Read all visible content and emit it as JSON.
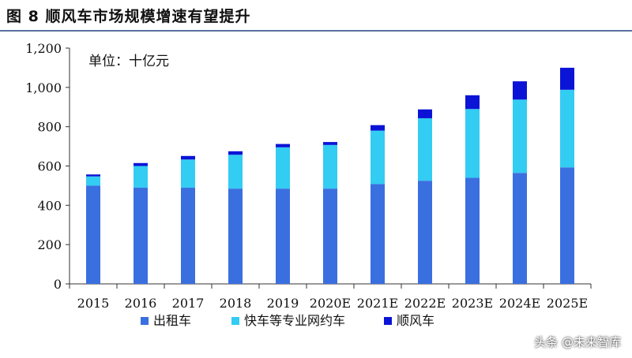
{
  "title": "图 8 顺风车市场规模增速有望提升",
  "watermark": "头条 @未来智库",
  "colors": {
    "taxi": "#3a6fe0",
    "express": "#33ccf2",
    "carpool": "#0b14d6",
    "title_rule": "#5a6fa0"
  },
  "chart_data": {
    "type": "bar",
    "stacked": true,
    "unit_label": "单位：十亿元",
    "categories": [
      "2015",
      "2016",
      "2017",
      "2018",
      "2019",
      "2020E",
      "2021E",
      "2022E",
      "2023E",
      "2024E",
      "2025E"
    ],
    "series": [
      {
        "name": "出租车",
        "values": [
          500,
          490,
          490,
          485,
          485,
          485,
          508,
          525,
          540,
          565,
          593
        ]
      },
      {
        "name": "快车等专业网约车",
        "values": [
          47,
          110,
          143,
          172,
          210,
          222,
          272,
          318,
          350,
          373,
          395
        ]
      },
      {
        "name": "顺风车",
        "values": [
          10,
          15,
          18,
          18,
          17,
          15,
          28,
          45,
          70,
          93,
          112
        ]
      }
    ],
    "ylim": [
      0,
      1200
    ],
    "yticks": [
      0,
      200,
      400,
      600,
      800,
      1000,
      1200
    ],
    "ytick_labels": [
      "0",
      "200",
      "400",
      "600",
      "800",
      "1,000",
      "1,200"
    ],
    "legend_position": "bottom",
    "grid": false
  }
}
